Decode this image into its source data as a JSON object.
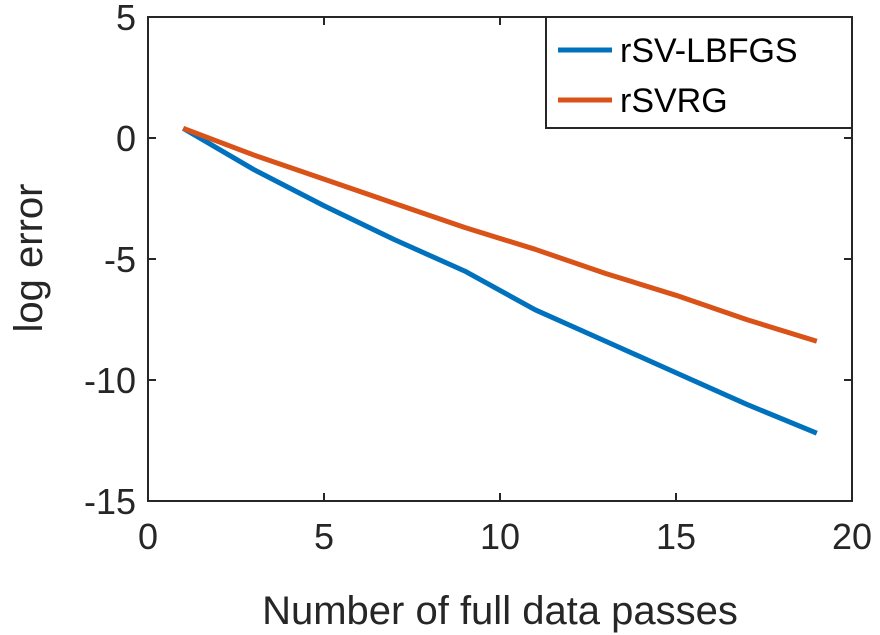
{
  "chart_data": {
    "type": "line",
    "title": "",
    "xlabel": "Number of full data passes",
    "ylabel": "log error",
    "xlim": [
      0,
      20
    ],
    "ylim": [
      -15,
      5
    ],
    "xticks": [
      0,
      5,
      10,
      15,
      20
    ],
    "yticks": [
      -15,
      -10,
      -5,
      0,
      5
    ],
    "grid": false,
    "legend_position": "top-right",
    "series": [
      {
        "name": "rSV-LBFGS",
        "color": "#0072BD",
        "x": [
          1,
          3,
          5,
          7,
          9,
          11,
          13,
          15,
          17,
          19
        ],
        "y": [
          0.4,
          -1.3,
          -2.8,
          -4.2,
          -5.5,
          -7.1,
          -8.4,
          -9.7,
          -11.0,
          -12.2
        ]
      },
      {
        "name": "rSVRG",
        "color": "#D95319",
        "x": [
          1,
          3,
          5,
          7,
          9,
          11,
          13,
          15,
          17,
          19
        ],
        "y": [
          0.4,
          -0.7,
          -1.7,
          -2.7,
          -3.7,
          -4.6,
          -5.6,
          -6.5,
          -7.5,
          -8.4
        ]
      }
    ]
  }
}
